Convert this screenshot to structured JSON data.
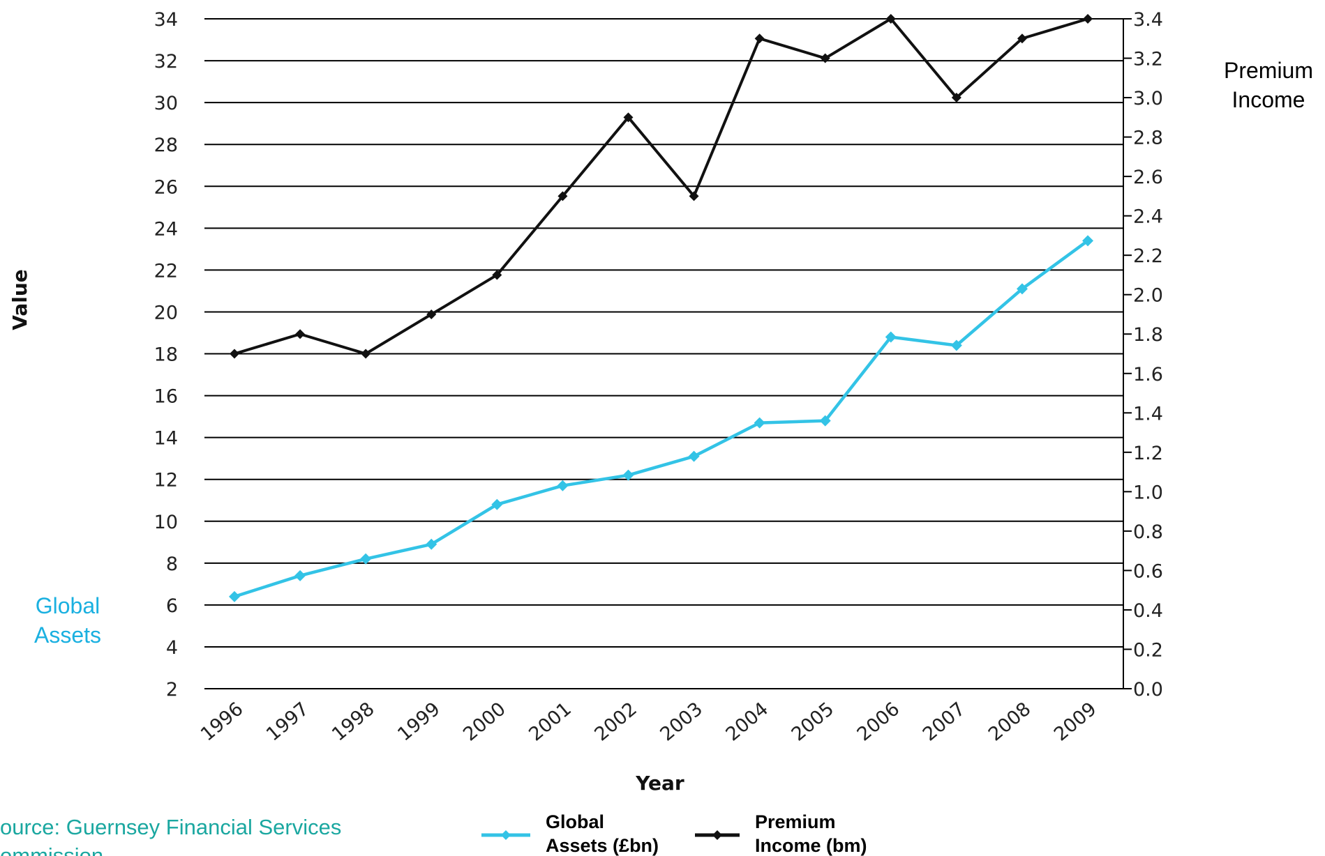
{
  "colors": {
    "global_assets": "#33c3e6",
    "premium_income": "#111111",
    "grid": "#000000",
    "source_text": "#1aa7a0",
    "global_label": "#1ab0e0"
  },
  "chart_data": {
    "type": "line",
    "xlabel": "Year",
    "ylabel": "Value",
    "categories": [
      "1996",
      "1997",
      "1998",
      "1999",
      "2000",
      "2001",
      "2002",
      "2003",
      "2004",
      "2005",
      "2006",
      "2007",
      "2008",
      "2009"
    ],
    "left_axis": {
      "ylim": [
        2,
        34
      ],
      "ticks": [
        "2",
        "4",
        "6",
        "8",
        "10",
        "12",
        "14",
        "16",
        "18",
        "20",
        "22",
        "24",
        "26",
        "28",
        "30",
        "32",
        "34"
      ]
    },
    "right_axis": {
      "ylim": [
        0.0,
        3.4
      ],
      "ticks": [
        "0.0",
        "0.2",
        "0.4",
        "0.6",
        "0.8",
        "1.0",
        "1.2",
        "1.4",
        "1.6",
        "1.8",
        "2.0",
        "2.2",
        "2.4",
        "2.6",
        "2.8",
        "3.0",
        "3.2",
        "3.4"
      ]
    },
    "grid": true,
    "legend_position": "bottom",
    "series": [
      {
        "name": "Global Assets (£bn)",
        "axis": "left",
        "values": [
          6.4,
          7.4,
          8.2,
          8.9,
          10.8,
          11.7,
          12.2,
          13.1,
          14.7,
          14.8,
          18.8,
          18.4,
          21.1,
          23.4
        ]
      },
      {
        "name": "Premium Income (bm)",
        "axis": "right",
        "values": [
          1.7,
          1.8,
          1.7,
          1.9,
          2.1,
          2.5,
          2.9,
          2.5,
          3.3,
          3.2,
          3.4,
          3.0,
          3.3,
          3.4
        ]
      }
    ]
  },
  "labels": {
    "right_side_line1": "Premium",
    "right_side_line2": "Income",
    "left_side_line1": "Global",
    "left_side_line2": "Assets",
    "source_line1": "ource: Guernsey Financial Services",
    "source_line2": "ommission"
  },
  "legend": {
    "global_line1": "Global",
    "global_line2": "Assets (£bn)",
    "premium_line1": "Premium",
    "premium_line2": "Income (bm)"
  }
}
